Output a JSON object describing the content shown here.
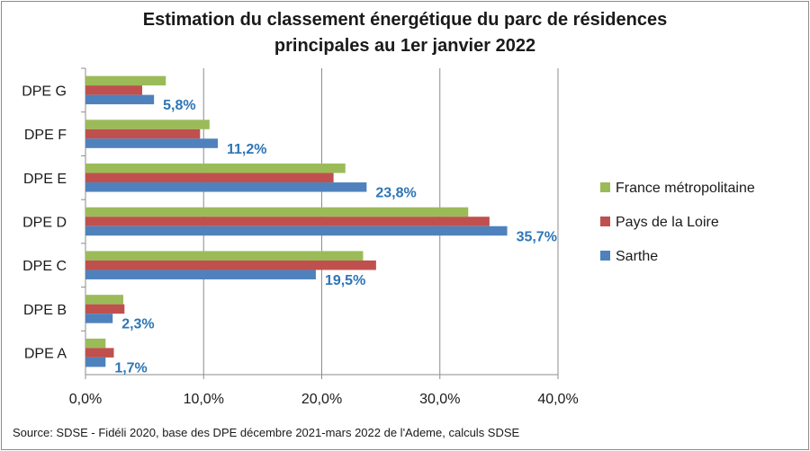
{
  "chart_data": {
    "type": "bar",
    "orientation": "horizontal",
    "title_line1": "Estimation du classement énergétique du parc de résidences",
    "title_line2": "principales  au 1er janvier 2022",
    "categories": [
      "DPE A",
      "DPE B",
      "DPE C",
      "DPE D",
      "DPE E",
      "DPE F",
      "DPE G"
    ],
    "series": [
      {
        "name": "France métropolitaine",
        "color": "#9bbb59",
        "values": [
          1.7,
          3.2,
          23.5,
          32.4,
          22.0,
          10.5,
          6.8
        ]
      },
      {
        "name": "Pays de la Loire",
        "color": "#c0504d",
        "values": [
          2.4,
          3.3,
          24.6,
          34.2,
          21.0,
          9.7,
          4.8
        ]
      },
      {
        "name": "Sarthe",
        "color": "#4f81bd",
        "values": [
          1.7,
          2.3,
          19.5,
          35.7,
          23.8,
          11.2,
          5.8
        ]
      }
    ],
    "data_labels": [
      "1,7%",
      "2,3%",
      "19,5%",
      "35,7%",
      "23,8%",
      "11,2%",
      "5,8%"
    ],
    "xlim": [
      0,
      40
    ],
    "xticks": [
      "0,0%",
      "10,0%",
      "20,0%",
      "30,0%",
      "40,0%"
    ],
    "grid": true,
    "legend_position": "right"
  },
  "source_text": "Source:  SDSE - Fidéli 2020, base des DPE  décembre 2021-mars 2022 de l'Ademe, calculs SDSE"
}
